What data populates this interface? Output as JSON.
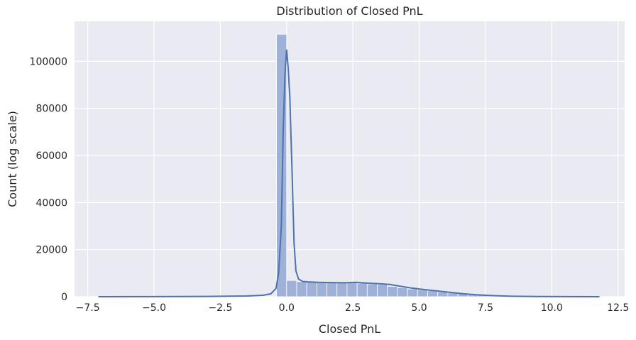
{
  "chart_data": {
    "type": "bar",
    "title": "Distribution of Closed PnL",
    "xlabel": "Closed PnL",
    "ylabel": "Count (log scale)",
    "xlim": [
      -8.0,
      12.75
    ],
    "ylim": [
      0,
      117000
    ],
    "xticks": [
      -7.5,
      -5.0,
      -2.5,
      0.0,
      2.5,
      5.0,
      7.5,
      10.0,
      12.5
    ],
    "xtick_labels": [
      "−7.5",
      "−5.0",
      "−2.5",
      "0.0",
      "2.5",
      "5.0",
      "7.5",
      "10.0",
      "12.5"
    ],
    "yticks": [
      0,
      20000,
      40000,
      60000,
      80000,
      100000
    ],
    "ytick_labels": [
      "0",
      "20000",
      "40000",
      "60000",
      "80000",
      "100000"
    ],
    "grid": true,
    "colors": {
      "background": "#eaeaf2",
      "grid": "#ffffff",
      "bar": "#9fb1d6",
      "bar_edge": "#ffffff",
      "kde": "#4c72b0"
    },
    "histogram": {
      "bin_width": 0.38,
      "bins": [
        {
          "x": -0.19,
          "count": 111500
        },
        {
          "x": 0.19,
          "count": 6900
        },
        {
          "x": 0.57,
          "count": 6400
        },
        {
          "x": 0.95,
          "count": 6200
        },
        {
          "x": 1.33,
          "count": 6100
        },
        {
          "x": 1.71,
          "count": 6000
        },
        {
          "x": 2.09,
          "count": 6000
        },
        {
          "x": 2.47,
          "count": 6100
        },
        {
          "x": 2.85,
          "count": 5700
        },
        {
          "x": 3.23,
          "count": 5400
        },
        {
          "x": 3.61,
          "count": 5200
        },
        {
          "x": 3.99,
          "count": 4400
        },
        {
          "x": 4.37,
          "count": 3800
        },
        {
          "x": 4.75,
          "count": 3300
        },
        {
          "x": 5.13,
          "count": 2900
        },
        {
          "x": 5.51,
          "count": 2500
        },
        {
          "x": 5.89,
          "count": 2000
        },
        {
          "x": 6.27,
          "count": 1600
        },
        {
          "x": 6.65,
          "count": 1200
        },
        {
          "x": 7.03,
          "count": 800
        },
        {
          "x": 7.41,
          "count": 600
        },
        {
          "x": 7.79,
          "count": 400
        },
        {
          "x": 8.17,
          "count": 250
        },
        {
          "x": 8.55,
          "count": 150
        },
        {
          "x": 8.93,
          "count": 100
        },
        {
          "x": 9.31,
          "count": 60
        },
        {
          "x": 9.69,
          "count": 40
        },
        {
          "x": 10.07,
          "count": 20
        },
        {
          "x": 10.45,
          "count": 15
        },
        {
          "x": 10.83,
          "count": 10
        },
        {
          "x": 11.21,
          "count": 5
        },
        {
          "x": 11.59,
          "count": 3
        }
      ]
    },
    "kde": {
      "x": [
        -7.1,
        -5.0,
        -3.0,
        -1.5,
        -0.9,
        -0.6,
        -0.4,
        -0.3,
        -0.2,
        -0.13,
        -0.06,
        0.0,
        0.06,
        0.12,
        0.2,
        0.28,
        0.35,
        0.45,
        0.6,
        0.8,
        1.2,
        1.7,
        2.2,
        2.6,
        3.0,
        3.5,
        3.9,
        4.3,
        4.7,
        5.2,
        5.7,
        6.2,
        6.7,
        7.2,
        7.8,
        8.5,
        9.5,
        10.5,
        11.8
      ],
      "y": [
        0,
        50,
        100,
        300,
        600,
        1200,
        3500,
        10000,
        30000,
        70000,
        95000,
        105000,
        97000,
        85000,
        55000,
        23000,
        11000,
        7500,
        6500,
        6300,
        6100,
        6000,
        5900,
        6100,
        5800,
        5500,
        5200,
        4400,
        3700,
        3000,
        2400,
        1800,
        1200,
        800,
        450,
        200,
        80,
        30,
        10
      ]
    }
  }
}
